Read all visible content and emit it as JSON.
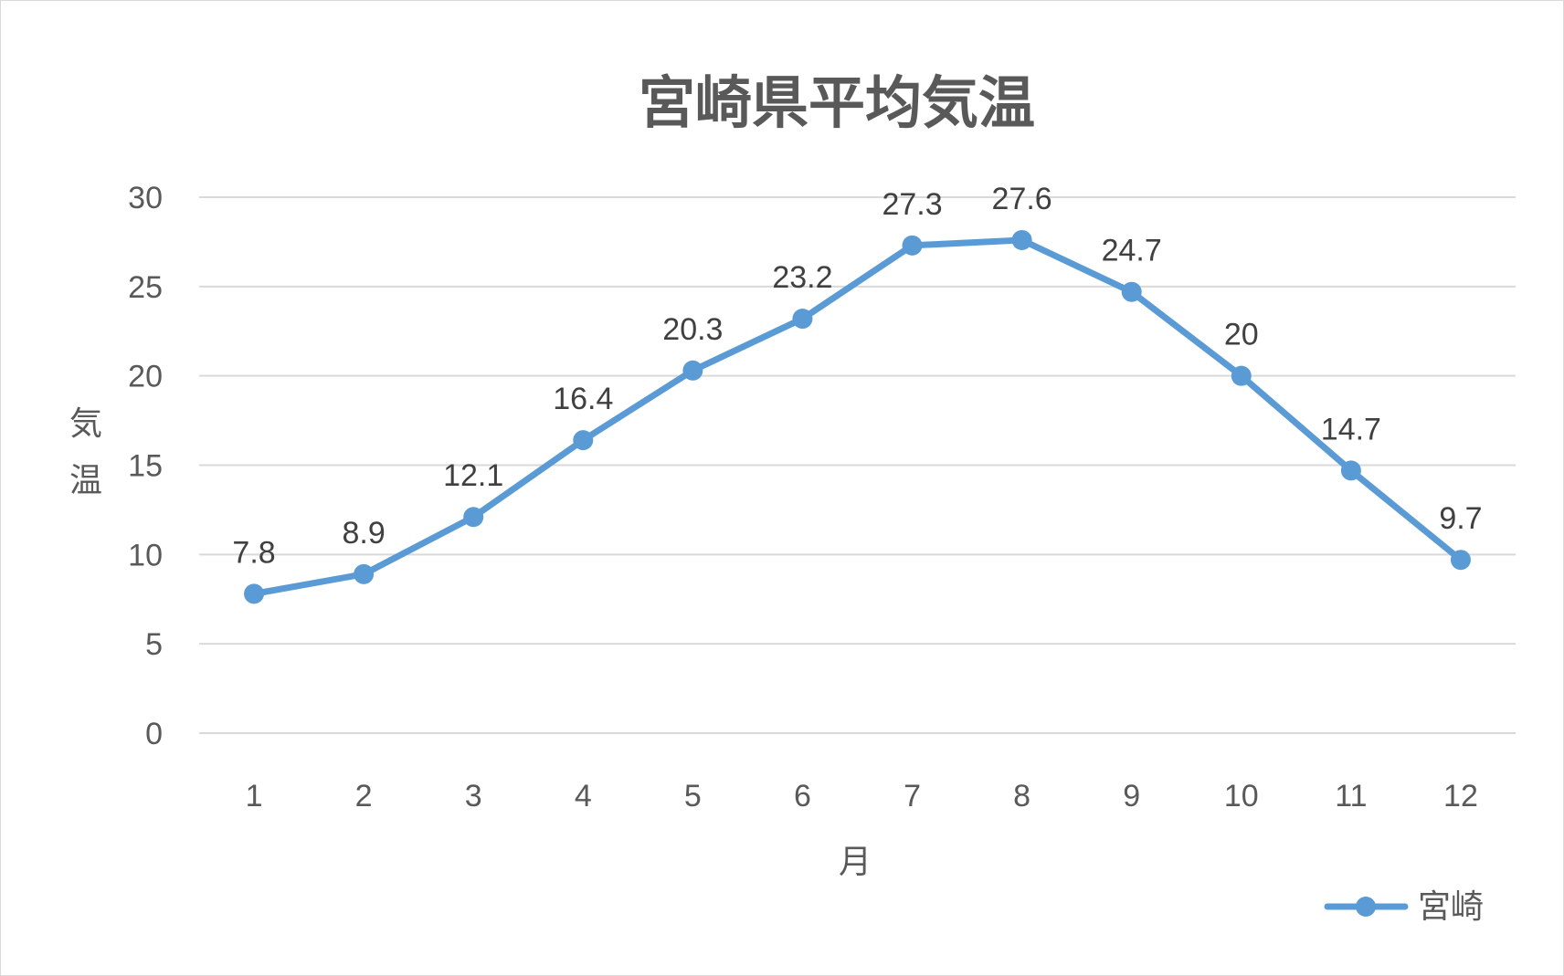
{
  "chart_data": {
    "type": "line",
    "title": "宮崎県平均気温",
    "xlabel": "月",
    "ylabel": "気温",
    "categories": [
      "1",
      "2",
      "3",
      "4",
      "5",
      "6",
      "7",
      "8",
      "9",
      "10",
      "11",
      "12"
    ],
    "series": [
      {
        "name": "宮崎",
        "values": [
          7.8,
          8.9,
          12.1,
          16.4,
          20.3,
          23.2,
          27.3,
          27.6,
          24.7,
          20,
          14.7,
          9.7
        ],
        "color": "#5b9bd5"
      }
    ],
    "ylim": [
      0,
      30
    ],
    "yticks": [
      "0",
      "5",
      "10",
      "15",
      "20",
      "25",
      "30"
    ],
    "grid": true,
    "legend_position": "bottom-right",
    "data_labels": true
  }
}
